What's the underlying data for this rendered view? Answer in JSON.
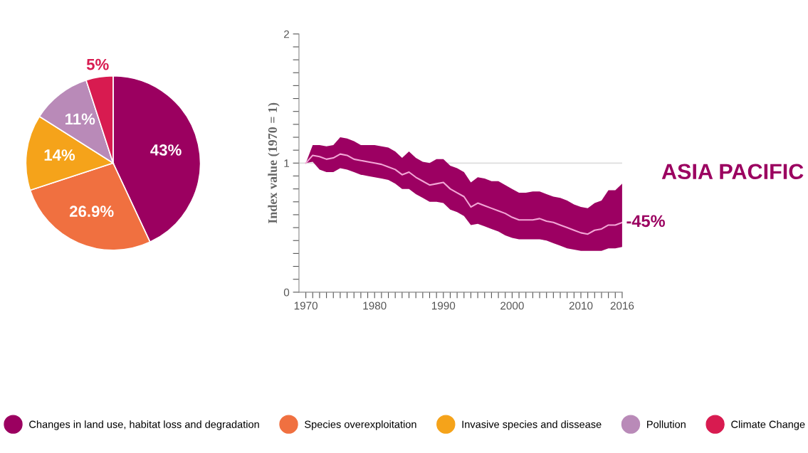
{
  "chart_data": [
    {
      "type": "pie",
      "categories": [
        "Changes in land use, habitat loss and degradation",
        "Species overexploitation",
        "Invasive species and dissease",
        "Pollution",
        "Climate Change"
      ],
      "values": [
        43,
        26.9,
        14,
        11,
        5
      ],
      "colors": [
        "#9b0060",
        "#f07040",
        "#f5a31a",
        "#b98ab8",
        "#d81b50"
      ],
      "value_labels": [
        "43%",
        "26.9%",
        "14%",
        "11%",
        "5%"
      ],
      "legend": "bottom"
    },
    {
      "type": "line",
      "ylabel": "Index value (1970 = 1)",
      "x": [
        1970,
        1971,
        1972,
        1973,
        1974,
        1975,
        1976,
        1977,
        1978,
        1979,
        1980,
        1981,
        1982,
        1983,
        1984,
        1985,
        1986,
        1987,
        1988,
        1989,
        1990,
        1991,
        1992,
        1993,
        1994,
        1995,
        1996,
        1997,
        1998,
        1999,
        2000,
        2001,
        2002,
        2003,
        2004,
        2005,
        2006,
        2007,
        2008,
        2009,
        2010,
        2011,
        2012,
        2013,
        2014,
        2015,
        2016
      ],
      "series": [
        {
          "color": "#f2a6d6",
          "values": [
            1.0,
            1.06,
            1.05,
            1.03,
            1.04,
            1.07,
            1.06,
            1.03,
            1.02,
            1.01,
            1.0,
            0.99,
            0.97,
            0.95,
            0.91,
            0.93,
            0.89,
            0.86,
            0.83,
            0.84,
            0.85,
            0.8,
            0.77,
            0.74,
            0.66,
            0.69,
            0.67,
            0.65,
            0.63,
            0.61,
            0.58,
            0.56,
            0.56,
            0.56,
            0.57,
            0.55,
            0.54,
            0.52,
            0.5,
            0.48,
            0.46,
            0.45,
            0.48,
            0.49,
            0.52,
            0.52,
            0.54
          ],
          "lower": [
            1.0,
            1.01,
            0.95,
            0.93,
            0.93,
            0.96,
            0.95,
            0.93,
            0.91,
            0.9,
            0.89,
            0.88,
            0.87,
            0.84,
            0.8,
            0.8,
            0.76,
            0.73,
            0.7,
            0.7,
            0.69,
            0.64,
            0.62,
            0.59,
            0.52,
            0.53,
            0.51,
            0.49,
            0.47,
            0.44,
            0.42,
            0.41,
            0.41,
            0.41,
            0.41,
            0.4,
            0.38,
            0.36,
            0.34,
            0.33,
            0.32,
            0.32,
            0.32,
            0.32,
            0.34,
            0.34,
            0.35
          ],
          "upper": [
            1.0,
            1.14,
            1.14,
            1.13,
            1.14,
            1.2,
            1.19,
            1.17,
            1.14,
            1.14,
            1.14,
            1.13,
            1.12,
            1.09,
            1.04,
            1.09,
            1.04,
            1.01,
            1.0,
            1.03,
            1.03,
            0.98,
            0.96,
            0.93,
            0.85,
            0.89,
            0.88,
            0.86,
            0.86,
            0.83,
            0.8,
            0.77,
            0.77,
            0.78,
            0.78,
            0.76,
            0.74,
            0.73,
            0.71,
            0.68,
            0.66,
            0.65,
            0.69,
            0.71,
            0.79,
            0.79,
            0.84
          ]
        }
      ],
      "xlim": [
        1969,
        2016
      ],
      "ylim": [
        0,
        2
      ],
      "xticks": [
        1970,
        {
          "value": 1971,
          "label": null
        },
        {
          "value": 1972,
          "label": null
        },
        {
          "value": 1973,
          "label": null
        },
        {
          "value": 1974,
          "label": null
        },
        {
          "value": 1975,
          "label": null
        },
        {
          "value": 1976,
          "label": null
        },
        {
          "value": 1977,
          "label": null
        },
        {
          "value": 1978,
          "label": null
        },
        {
          "value": 1979,
          "label": null
        },
        1980,
        {
          "value": 1981,
          "label": null
        },
        {
          "value": 1982,
          "label": null
        },
        {
          "value": 1983,
          "label": null
        },
        {
          "value": 1984,
          "label": null
        },
        {
          "value": 1985,
          "label": null
        },
        {
          "value": 1986,
          "label": null
        },
        {
          "value": 1987,
          "label": null
        },
        {
          "value": 1988,
          "label": null
        },
        {
          "value": 1989,
          "label": null
        },
        1990,
        {
          "value": 1991,
          "label": null
        },
        {
          "value": 1992,
          "label": null
        },
        {
          "value": 1993,
          "label": null
        },
        {
          "value": 1994,
          "label": null
        },
        {
          "value": 1995,
          "label": null
        },
        {
          "value": 1996,
          "label": null
        },
        {
          "value": 1997,
          "label": null
        },
        {
          "value": 1998,
          "label": null
        },
        {
          "value": 1999,
          "label": null
        },
        2000,
        {
          "value": 2001,
          "label": null
        },
        {
          "value": 2002,
          "label": null
        },
        {
          "value": 2003,
          "label": null
        },
        {
          "value": 2004,
          "label": null
        },
        {
          "value": 2005,
          "label": null
        },
        {
          "value": 2006,
          "label": null
        },
        {
          "value": 2007,
          "label": null
        },
        {
          "value": 2008,
          "label": null
        },
        {
          "value": 2009,
          "label": null
        },
        2010,
        {
          "value": 2011,
          "label": null
        },
        {
          "value": 2012,
          "label": null
        },
        {
          "value": 2013,
          "label": null
        },
        {
          "value": 2014,
          "label": null
        },
        {
          "value": 2015,
          "label": null
        },
        2016
      ],
      "yticks": [
        0,
        {
          "value": 0.1,
          "label": null
        },
        {
          "value": 0.2,
          "label": null
        },
        {
          "value": 0.3,
          "label": null
        },
        {
          "value": 0.4,
          "label": null
        },
        {
          "value": 0.5,
          "label": null
        },
        {
          "value": 0.6,
          "label": null
        },
        {
          "value": 0.7,
          "label": null
        },
        {
          "value": 0.8,
          "label": null
        },
        {
          "value": 0.9,
          "label": null
        },
        1,
        {
          "value": 1.1,
          "label": null
        },
        {
          "value": 1.2,
          "label": null
        },
        {
          "value": 1.3,
          "label": null
        },
        {
          "value": 1.4,
          "label": null
        },
        {
          "value": 1.5,
          "label": null
        },
        {
          "value": 1.6,
          "label": null
        },
        {
          "value": 1.7,
          "label": null
        },
        {
          "value": 1.8,
          "label": null
        },
        {
          "value": 1.9,
          "label": null
        },
        2
      ],
      "ref_lines": [
        {
          "axis": "y",
          "value": 1,
          "color": "#dddddd"
        }
      ],
      "annotations": [
        {
          "text": "-45%",
          "x": 2016,
          "y": 0.54
        },
        "ASIA PACIFIC"
      ],
      "grid": false,
      "legend": false,
      "marker": "none",
      "line_style": "solid"
    }
  ]
}
